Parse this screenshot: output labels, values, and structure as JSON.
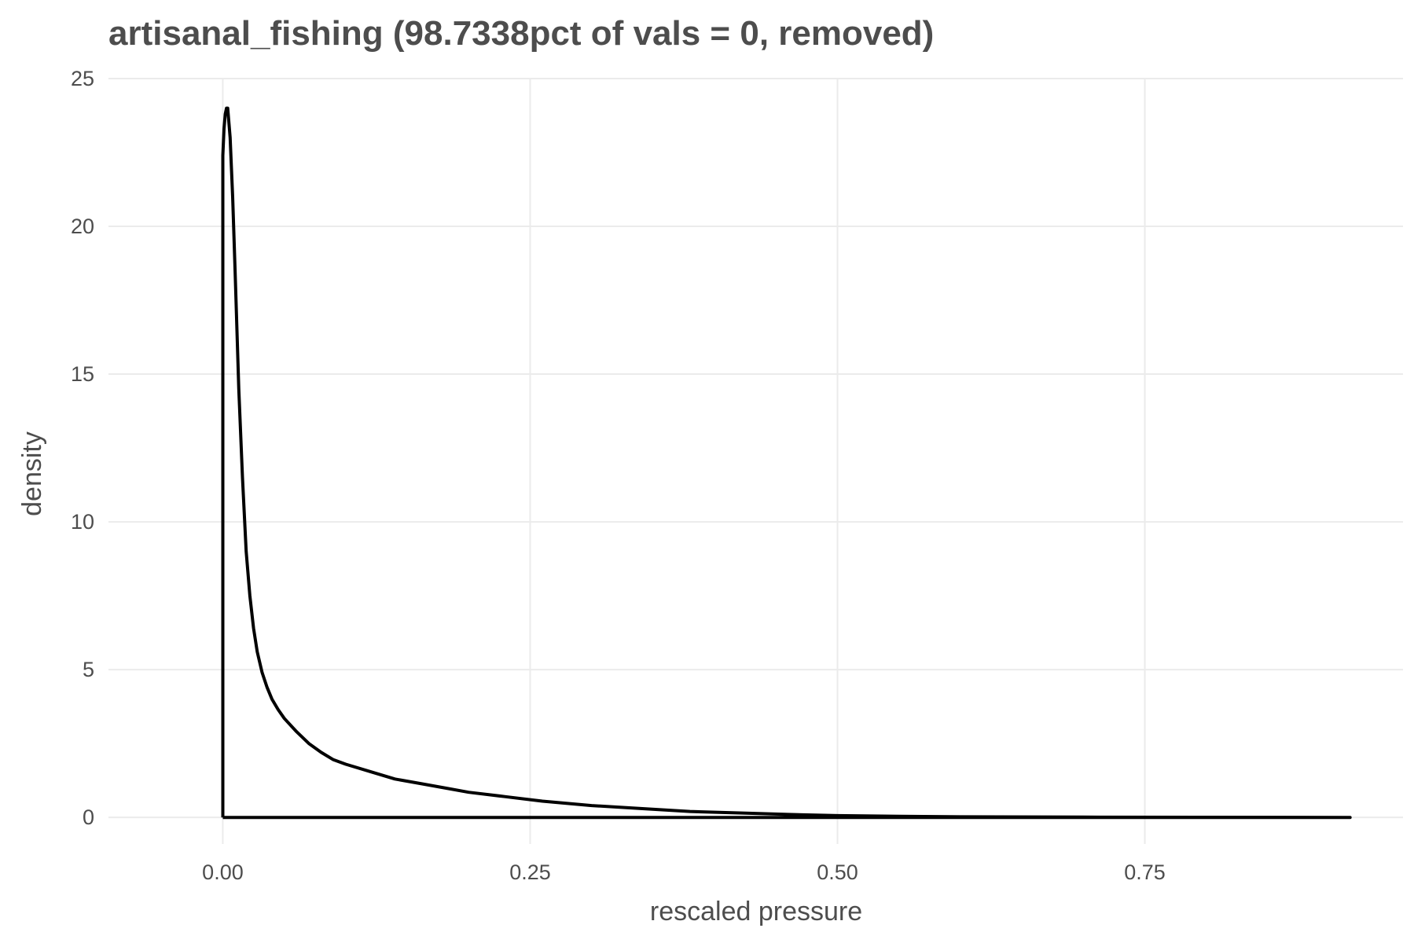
{
  "chart_data": {
    "type": "line",
    "title": "artisanal_fishing (98.7338pct of vals = 0, removed)",
    "xlabel": "rescaled pressure",
    "ylabel": "density",
    "xlim": [
      -0.093,
      0.96
    ],
    "ylim": [
      -0.9,
      25.0
    ],
    "x_ticks": [
      0.0,
      0.25,
      0.5,
      0.75
    ],
    "x_tick_labels": [
      "0.00",
      "0.25",
      "0.50",
      "0.75"
    ],
    "y_ticks": [
      0,
      5,
      10,
      15,
      20,
      25
    ],
    "y_tick_labels": [
      "0",
      "5",
      "10",
      "15",
      "20",
      "25"
    ],
    "grid": true,
    "legend": "none",
    "line_color": "#000000",
    "series": [
      {
        "x": [
          0.0,
          0.0,
          0.001,
          0.002,
          0.003,
          0.004,
          0.006,
          0.008,
          0.01,
          0.013,
          0.016,
          0.019,
          0.022,
          0.025,
          0.028,
          0.032,
          0.036,
          0.04,
          0.045,
          0.05,
          0.06,
          0.07,
          0.08,
          0.09,
          0.1,
          0.12,
          0.14,
          0.16,
          0.18,
          0.2,
          0.23,
          0.26,
          0.3,
          0.34,
          0.38,
          0.42,
          0.46,
          0.5,
          0.55,
          0.6,
          0.7,
          0.8,
          0.917,
          0.917,
          0.0
        ],
        "values": [
          0.0,
          22.4,
          23.3,
          23.8,
          24.0,
          24.0,
          23.0,
          21.0,
          18.5,
          14.5,
          11.5,
          9.0,
          7.5,
          6.4,
          5.6,
          4.9,
          4.4,
          4.0,
          3.65,
          3.35,
          2.9,
          2.5,
          2.2,
          1.95,
          1.8,
          1.55,
          1.3,
          1.15,
          1.0,
          0.85,
          0.7,
          0.55,
          0.4,
          0.3,
          0.2,
          0.15,
          0.1,
          0.06,
          0.04,
          0.02,
          0.01,
          0.005,
          0.0,
          0.0,
          0.0
        ]
      }
    ]
  }
}
